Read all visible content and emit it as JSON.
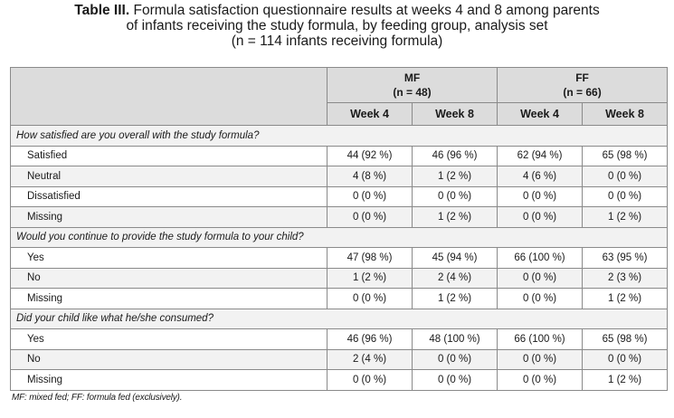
{
  "caption": {
    "label": "Table III.",
    "text_line1": " Formula satisfaction questionnaire results at weeks 4 and 8 among parents",
    "text_line2": "of infants receiving the study formula, by feeding group, analysis set",
    "text_line3": "(n = 114 infants receiving formula)"
  },
  "groups": [
    {
      "name": "MF",
      "n": "(n = 48)"
    },
    {
      "name": "FF",
      "n": "(n = 66)"
    }
  ],
  "weeks": [
    "Week 4",
    "Week 8",
    "Week 4",
    "Week 8"
  ],
  "sections": [
    {
      "question": "How satisfied are you overall with the study formula?",
      "rows": [
        {
          "label": "Satisfied",
          "values": [
            "44 (92 %)",
            "46 (96 %)",
            "62 (94 %)",
            "65 (98 %)"
          ]
        },
        {
          "label": "Neutral",
          "values": [
            "4 (8 %)",
            "1 (2 %)",
            "4 (6 %)",
            "0 (0 %)"
          ]
        },
        {
          "label": "Dissatisfied",
          "values": [
            "0 (0 %)",
            "0 (0 %)",
            "0 (0 %)",
            "0 (0 %)"
          ]
        },
        {
          "label": "Missing",
          "values": [
            "0 (0 %)",
            "1 (2 %)",
            "0 (0 %)",
            "1 (2 %)"
          ]
        }
      ]
    },
    {
      "question": "Would you continue to provide the study formula to your child?",
      "rows": [
        {
          "label": "Yes",
          "values": [
            "47 (98 %)",
            "45 (94 %)",
            "66 (100 %)",
            "63 (95 %)"
          ]
        },
        {
          "label": "No",
          "values": [
            "1 (2 %)",
            "2 (4 %)",
            "0 (0 %)",
            "2 (3 %)"
          ]
        },
        {
          "label": "Missing",
          "values": [
            "0 (0 %)",
            "1 (2 %)",
            "0 (0 %)",
            "1 (2 %)"
          ]
        }
      ]
    },
    {
      "question": "Did your child like what he/she consumed?",
      "rows": [
        {
          "label": "Yes",
          "values": [
            "46 (96 %)",
            "48 (100 %)",
            "66 (100 %)",
            "65 (98 %)"
          ]
        },
        {
          "label": "No",
          "values": [
            "2 (4 %)",
            "0 (0 %)",
            "0 (0 %)",
            "0 (0 %)"
          ]
        },
        {
          "label": "Missing",
          "values": [
            "0 (0 %)",
            "0 (0 %)",
            "0 (0 %)",
            "1 (2 %)"
          ]
        }
      ]
    }
  ],
  "footnote": "MF: mixed fed; FF: formula fed (exclusively)."
}
